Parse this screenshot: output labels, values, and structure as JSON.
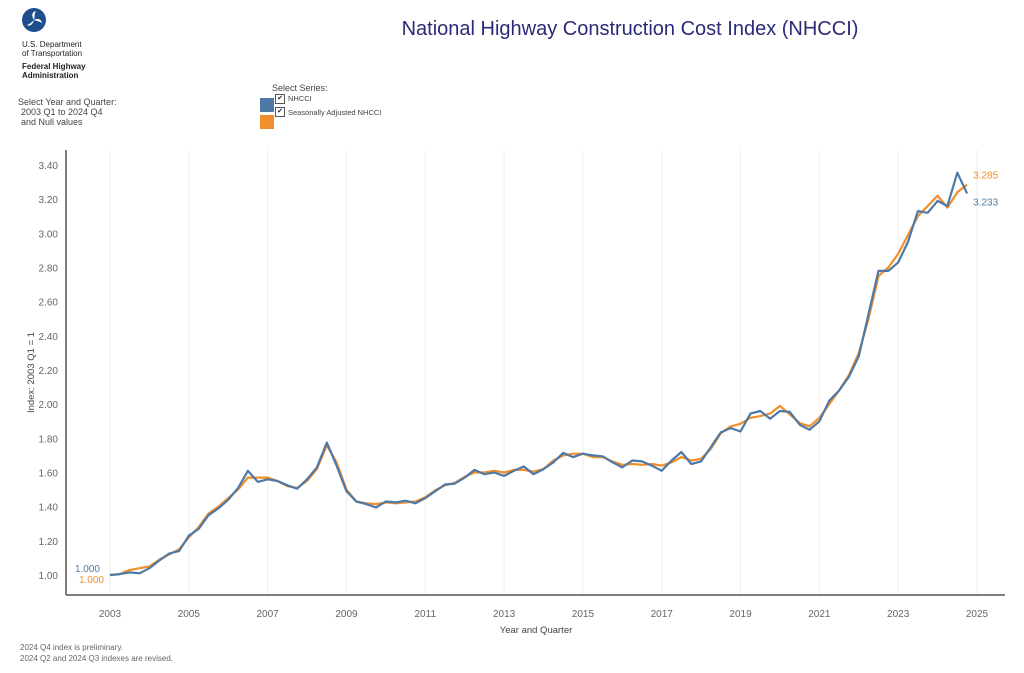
{
  "header": {
    "logo_icon": "dot-triskelion-logo-icon",
    "org_line1": "U.S. Department",
    "org_line2": "of Transportation",
    "org_line3": "Federal Highway",
    "org_line4": "Administration",
    "title": "National Highway Construction Cost Index (NHCCI)"
  },
  "filters": {
    "year_quarter_label": "Select Year and Quarter:",
    "year_quarter_range": "2003 Q1 to 2024 Q4",
    "year_quarter_null": "and Null values",
    "series_label": "Select Series:",
    "series": [
      {
        "label": "NHCCI",
        "checked": true,
        "color": "#4e79a7",
        "check_glyph": "✔"
      },
      {
        "label": "Seasonally Adjusted NHCCI",
        "checked": true,
        "color": "#f28e2b",
        "check_glyph": "✔"
      }
    ]
  },
  "footnotes": [
    "2024 Q4 index is preliminary.",
    "2024 Q2 and 2024 Q3 indexes are revised."
  ],
  "chart_data": {
    "type": "line",
    "title": "National Highway Construction Cost Index (NHCCI)",
    "xlabel": "Year and Quarter",
    "ylabel": "Index: 2003 Q1 = 1",
    "ylim": [
      0.9,
      3.45
    ],
    "xlim": [
      2002.5,
      2025.7
    ],
    "yticks": [
      1.0,
      1.2,
      1.4,
      1.6,
      1.8,
      2.0,
      2.2,
      2.4,
      2.6,
      2.8,
      3.0,
      3.2,
      3.4
    ],
    "ytick_labels": [
      "1.00",
      "1.20",
      "1.40",
      "1.60",
      "1.80",
      "2.00",
      "2.20",
      "2.40",
      "2.60",
      "2.80",
      "3.00",
      "3.20",
      "3.40"
    ],
    "xticks": [
      2003,
      2005,
      2007,
      2009,
      2011,
      2013,
      2015,
      2017,
      2019,
      2021,
      2023,
      2025
    ],
    "xtick_labels": [
      "2003",
      "2005",
      "2007",
      "2009",
      "2011",
      "2013",
      "2015",
      "2017",
      "2019",
      "2021",
      "2023",
      "2025"
    ],
    "grid": "vertical",
    "x_start": 2003.0,
    "x_step": 0.25,
    "series": [
      {
        "name": "NHCCI",
        "color": "#4e79a7",
        "start_label": "1.000",
        "end_label": "3.233",
        "values": [
          1.0,
          1.005,
          1.015,
          1.01,
          1.04,
          1.085,
          1.125,
          1.14,
          1.23,
          1.27,
          1.35,
          1.39,
          1.44,
          1.51,
          1.61,
          1.545,
          1.56,
          1.55,
          1.525,
          1.505,
          1.56,
          1.63,
          1.775,
          1.64,
          1.49,
          1.43,
          1.415,
          1.395,
          1.43,
          1.425,
          1.435,
          1.42,
          1.45,
          1.49,
          1.53,
          1.535,
          1.57,
          1.615,
          1.59,
          1.6,
          1.58,
          1.61,
          1.635,
          1.59,
          1.62,
          1.66,
          1.715,
          1.69,
          1.71,
          1.7,
          1.695,
          1.66,
          1.63,
          1.67,
          1.665,
          1.64,
          1.61,
          1.67,
          1.72,
          1.65,
          1.665,
          1.75,
          1.835,
          1.86,
          1.84,
          1.945,
          1.96,
          1.915,
          1.96,
          1.955,
          1.88,
          1.85,
          1.9,
          2.02,
          2.08,
          2.16,
          2.28,
          2.53,
          2.78,
          2.78,
          2.83,
          2.95,
          3.13,
          3.12,
          3.19,
          3.16,
          3.355,
          3.233
        ]
      },
      {
        "name": "Seasonally Adjusted NHCCI",
        "color": "#f28e2b",
        "start_label": "1.000",
        "end_label": "3.285",
        "values": [
          1.0,
          1.005,
          1.03,
          1.04,
          1.05,
          1.09,
          1.12,
          1.15,
          1.22,
          1.28,
          1.36,
          1.4,
          1.45,
          1.5,
          1.57,
          1.57,
          1.57,
          1.55,
          1.52,
          1.51,
          1.55,
          1.62,
          1.76,
          1.66,
          1.5,
          1.43,
          1.42,
          1.415,
          1.425,
          1.42,
          1.425,
          1.43,
          1.455,
          1.495,
          1.525,
          1.54,
          1.575,
          1.6,
          1.6,
          1.61,
          1.6,
          1.615,
          1.615,
          1.605,
          1.62,
          1.67,
          1.7,
          1.71,
          1.71,
          1.69,
          1.69,
          1.665,
          1.645,
          1.65,
          1.645,
          1.65,
          1.64,
          1.66,
          1.69,
          1.67,
          1.68,
          1.74,
          1.83,
          1.87,
          1.885,
          1.92,
          1.93,
          1.945,
          1.99,
          1.94,
          1.89,
          1.87,
          1.92,
          2.0,
          2.08,
          2.17,
          2.3,
          2.5,
          2.75,
          2.8,
          2.88,
          2.99,
          3.1,
          3.16,
          3.22,
          3.15,
          3.24,
          3.285
        ]
      }
    ]
  }
}
